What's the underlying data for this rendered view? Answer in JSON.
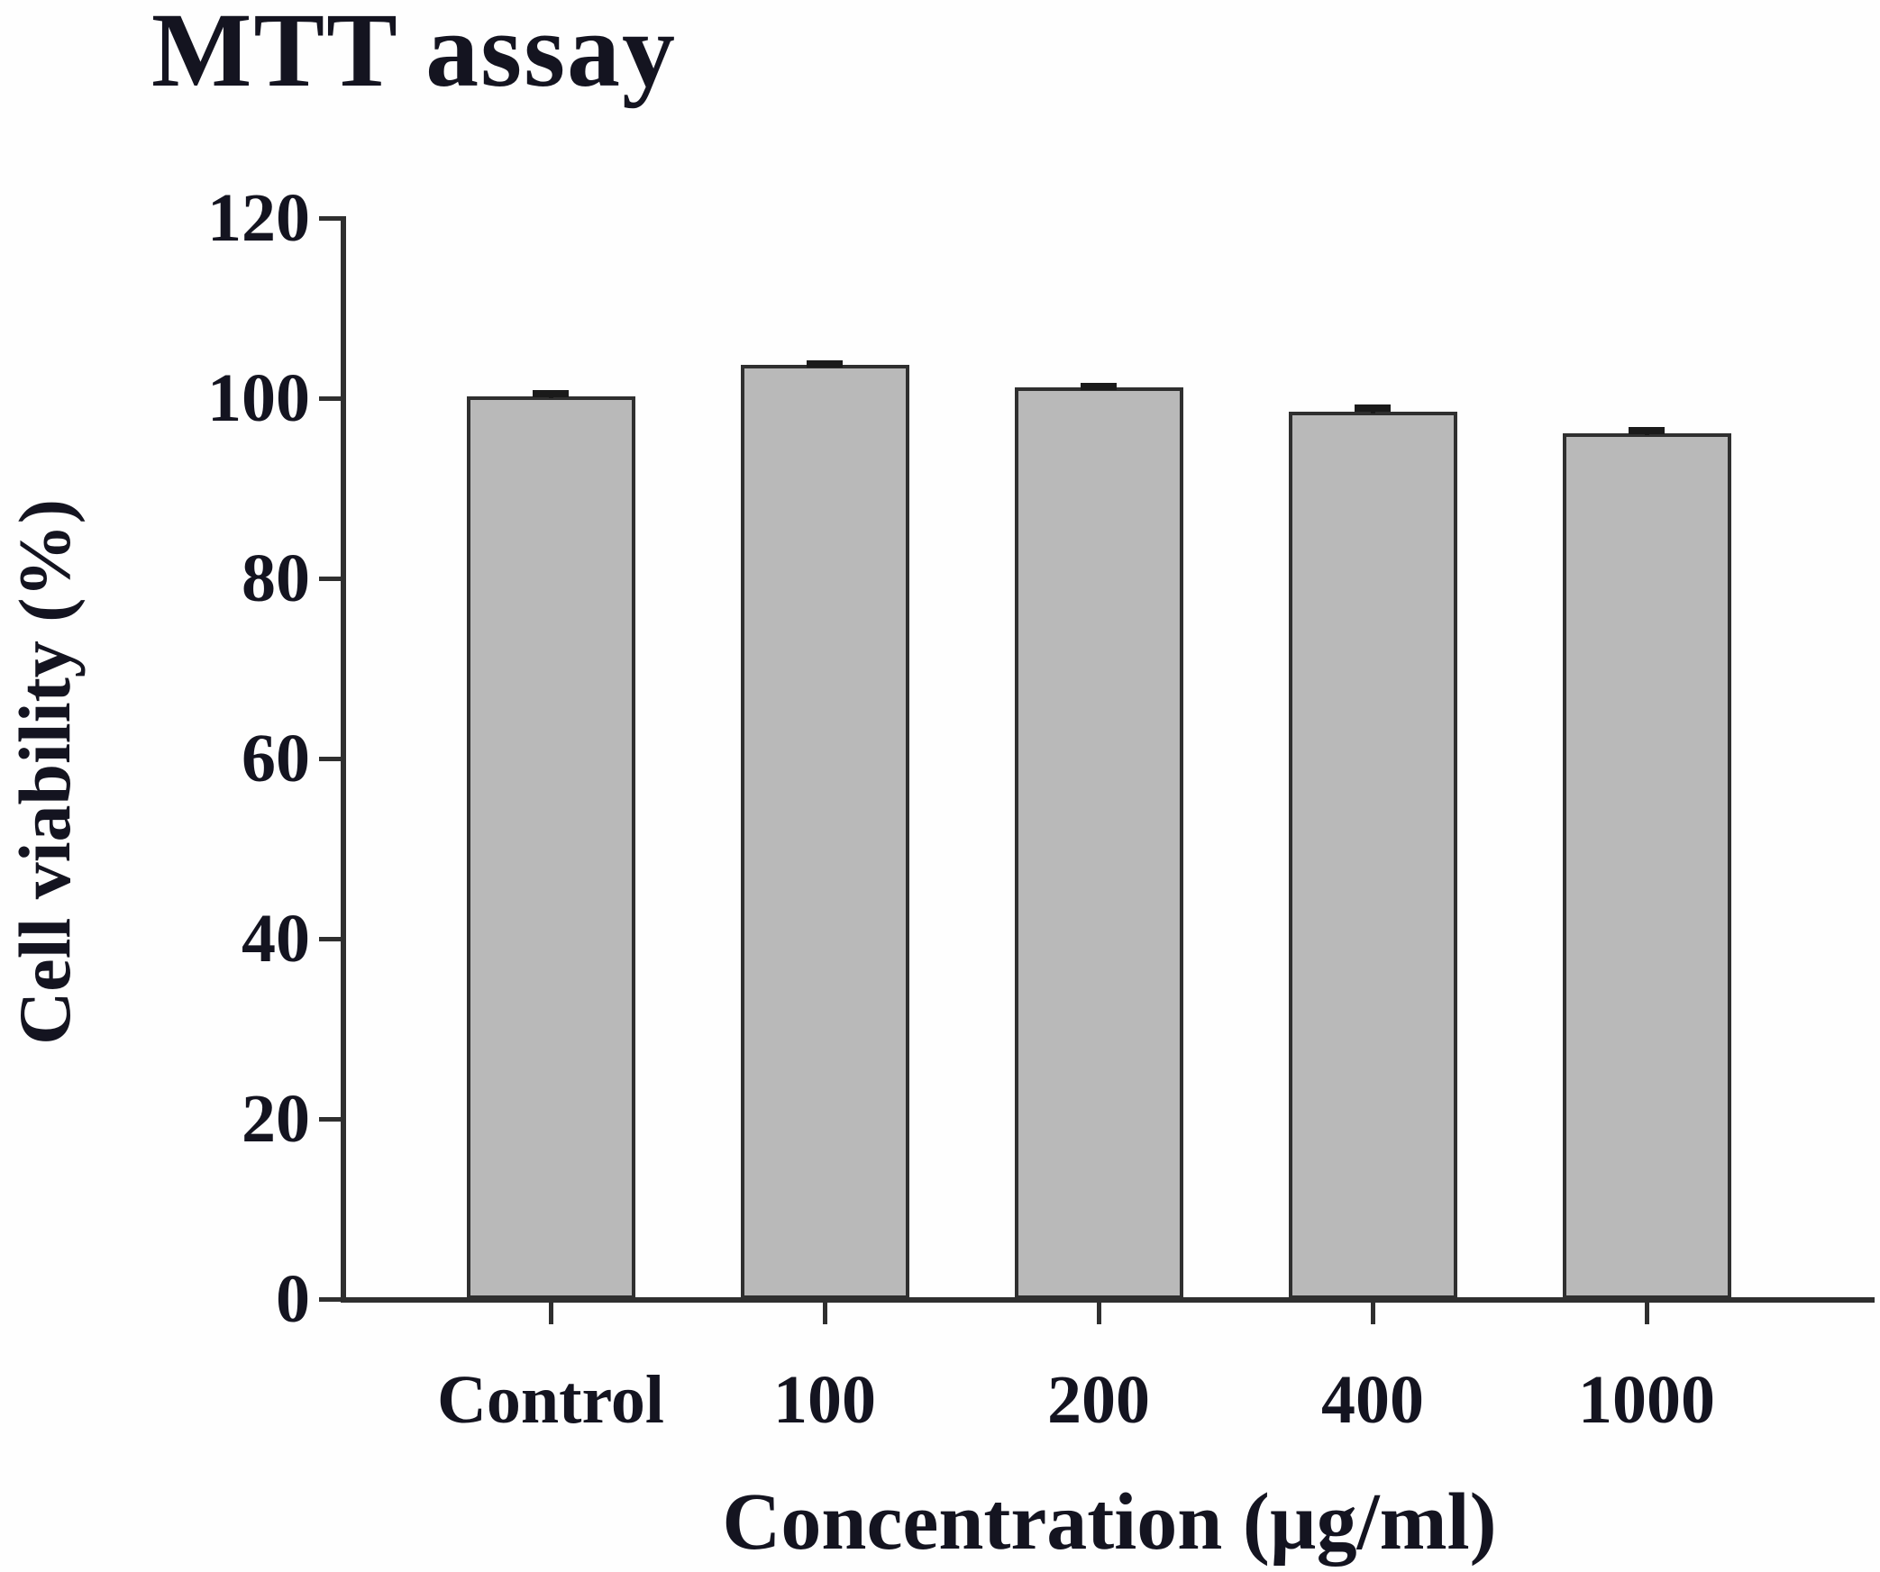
{
  "figure": {
    "title": "MTT assay"
  },
  "chart_data": {
    "type": "bar",
    "title": "MTT assay",
    "categories": [
      "Control",
      "100",
      "200",
      "400",
      "1000"
    ],
    "values": [
      100.0,
      103.5,
      101.0,
      98.3,
      95.9
    ],
    "errors": [
      0.7,
      0.5,
      0.5,
      0.8,
      0.7
    ],
    "xlabel": "Concentration (µg/ml)",
    "ylabel": "Cell viability (%)",
    "ylim": [
      0,
      120
    ],
    "yticks": [
      0,
      20,
      40,
      60,
      80,
      100,
      120
    ],
    "grid": false,
    "legend_position": "none",
    "bar_color": "#b9b9b9",
    "bar_border_color": "#2f2f2f",
    "error_bar_color": "#1a1a1a",
    "text_color": "#141420"
  }
}
